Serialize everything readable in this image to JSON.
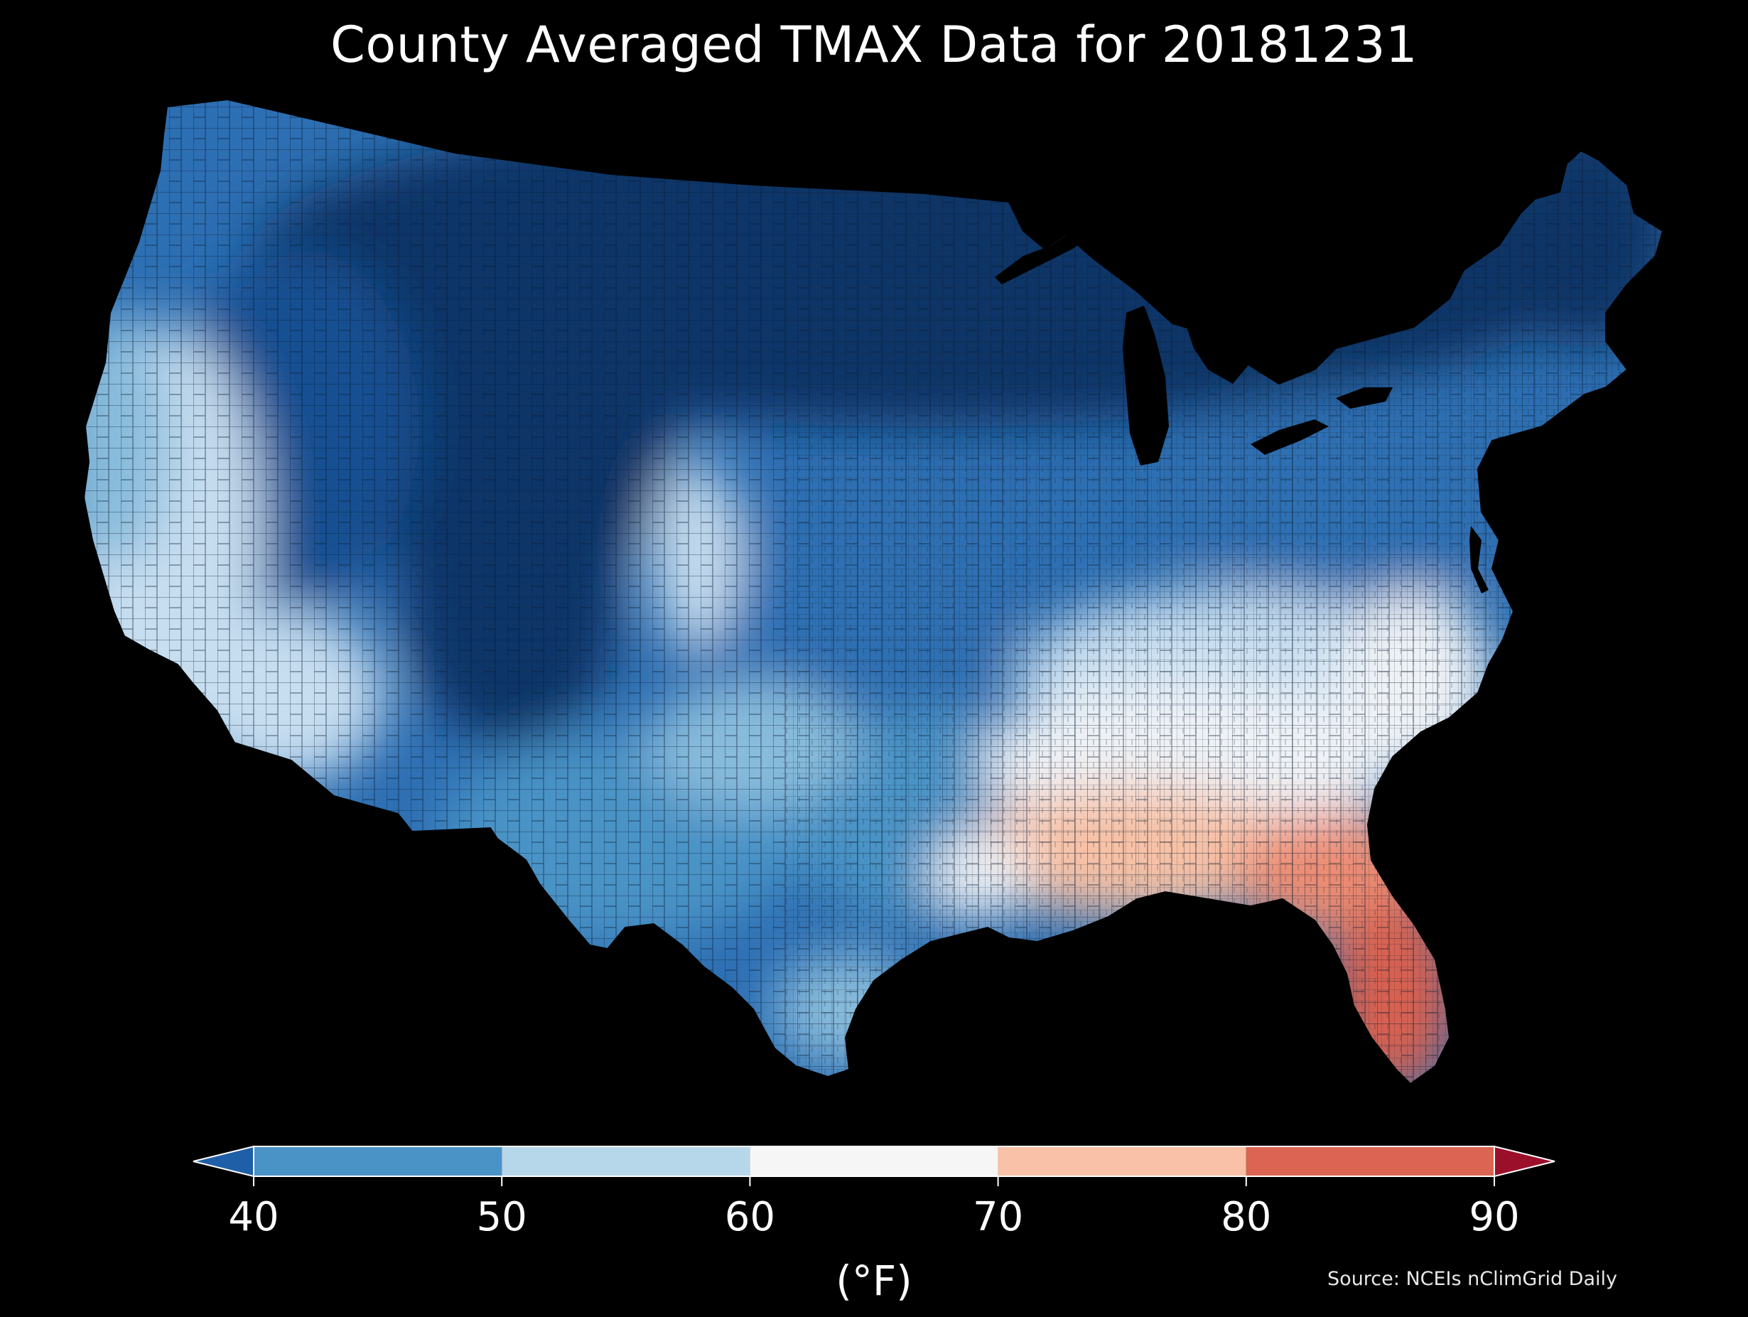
{
  "title": "County Averaged TMAX Data for 20181231",
  "source": "Source: NCEIs nClimGrid Daily",
  "colorbar": {
    "unit": "(°F)",
    "ticks": [
      "40",
      "50",
      "60",
      "70",
      "80",
      "90"
    ],
    "bins": [
      {
        "min": 40,
        "max": 50,
        "color": "#4a93c6"
      },
      {
        "min": 50,
        "max": 60,
        "color": "#b6d6ea"
      },
      {
        "min": 60,
        "max": 70,
        "color": "#f6f6f6"
      },
      {
        "min": 70,
        "max": 80,
        "color": "#f9c2a8"
      },
      {
        "min": 80,
        "max": 90,
        "color": "#dc6452"
      }
    ],
    "under_color": "#1f5fa8",
    "over_color": "#9c0f2a",
    "extend": "both"
  },
  "map": {
    "region": "Contiguous United States counties",
    "variable": "TMAX",
    "colors": {
      "deep_blue": "#0b3468",
      "dark_blue": "#174f92",
      "mid_blue": "#2d6fb3",
      "blue": "#4a93c6",
      "light_blue": "#88bcdc",
      "pale_blue": "#c7def0",
      "white": "#eef2f6",
      "peach": "#f7c1a6",
      "salmon": "#ec8d74",
      "red": "#d8604f",
      "land_fallback": "#3d80bd"
    }
  }
}
